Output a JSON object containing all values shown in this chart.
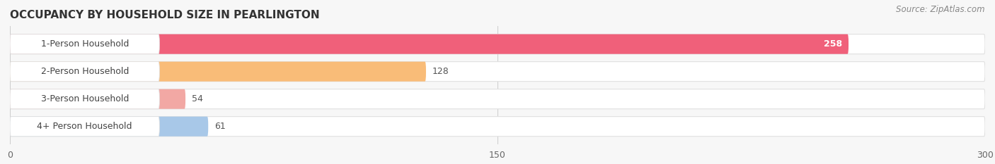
{
  "title": "OCCUPANCY BY HOUSEHOLD SIZE IN PEARLINGTON",
  "source": "Source: ZipAtlas.com",
  "categories": [
    "1-Person Household",
    "2-Person Household",
    "3-Person Household",
    "4+ Person Household"
  ],
  "values": [
    258,
    128,
    54,
    61
  ],
  "bar_colors": [
    "#f0607a",
    "#f9bc78",
    "#f2a8a4",
    "#a8c8e8"
  ],
  "row_bg_color": "#ffffff",
  "sep_color": "#e0e0e0",
  "label_bg_color": "#ffffff",
  "outer_bg_color": "#f7f7f7",
  "xlim": [
    0,
    300
  ],
  "xticks": [
    0,
    150,
    300
  ],
  "title_fontsize": 11,
  "label_fontsize": 9,
  "value_fontsize": 9,
  "source_fontsize": 8.5
}
